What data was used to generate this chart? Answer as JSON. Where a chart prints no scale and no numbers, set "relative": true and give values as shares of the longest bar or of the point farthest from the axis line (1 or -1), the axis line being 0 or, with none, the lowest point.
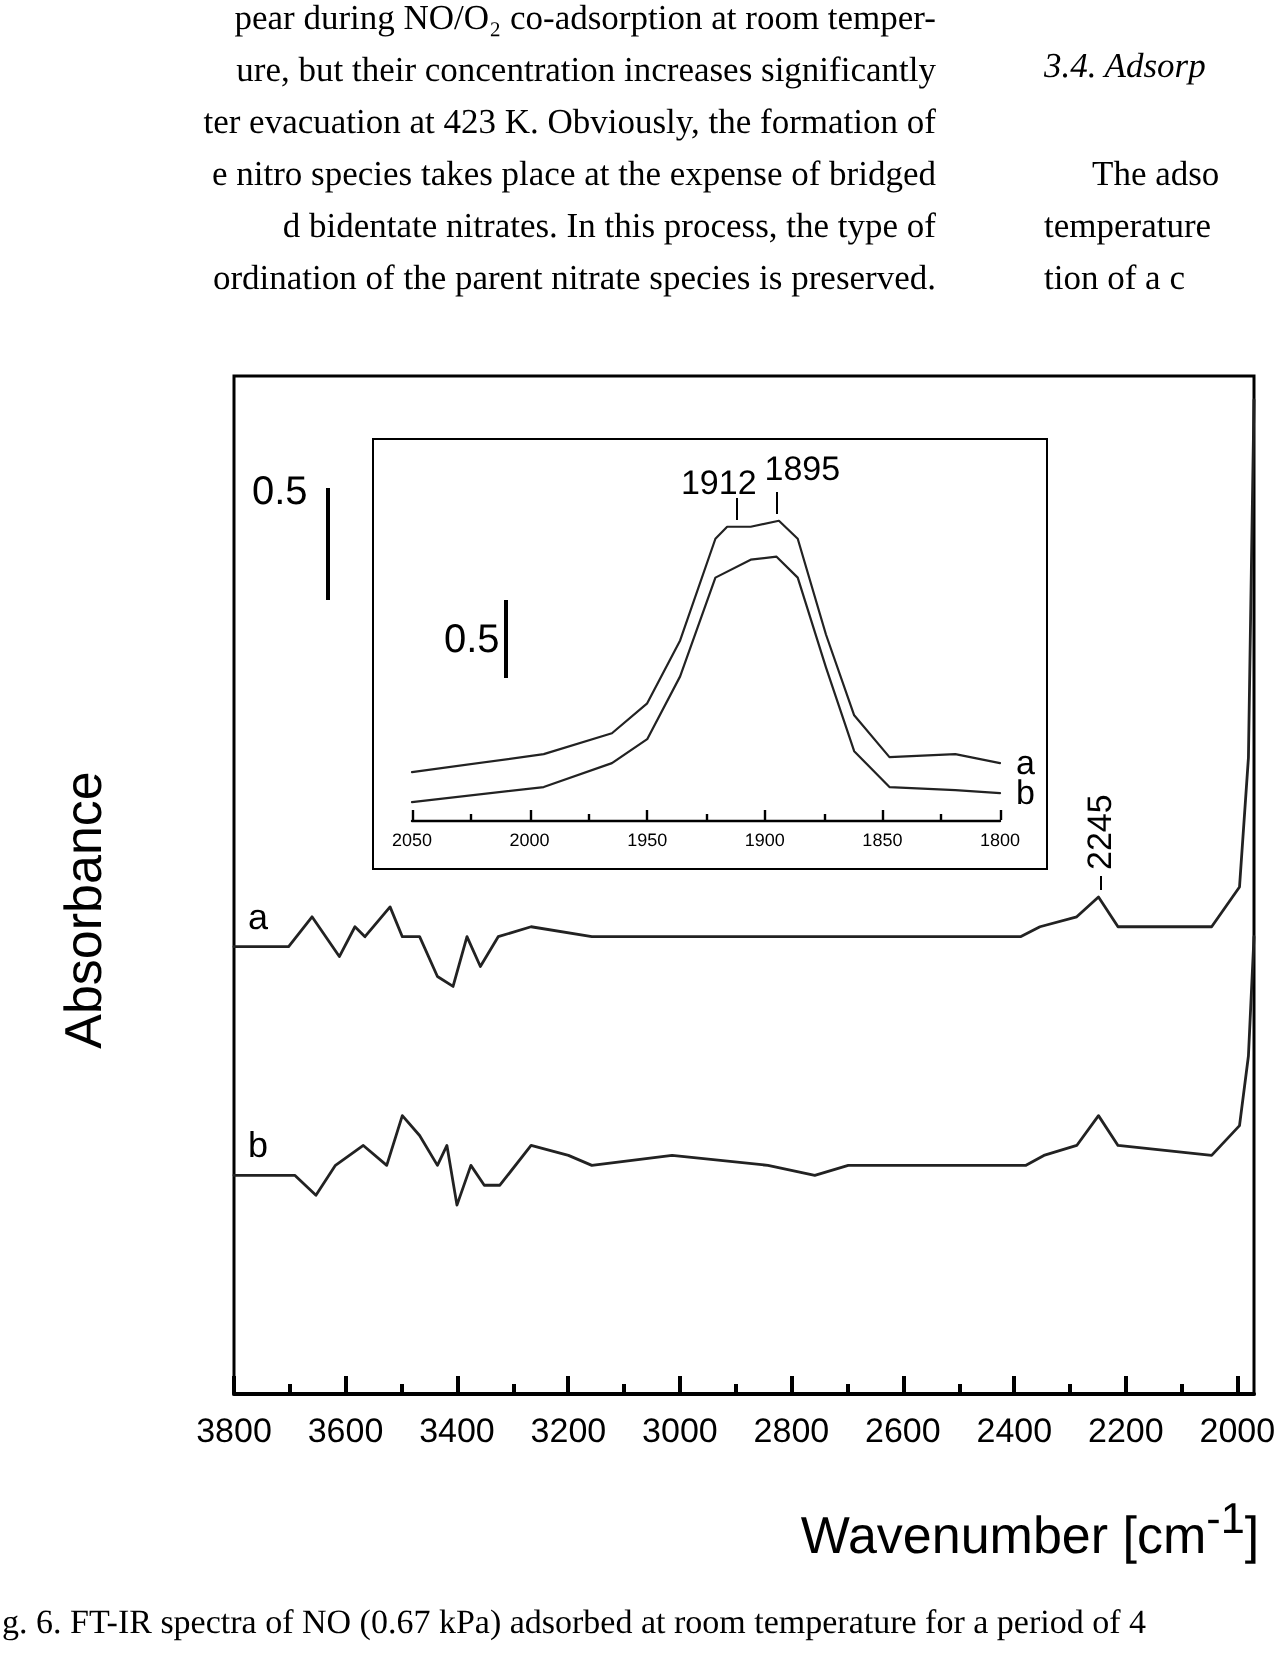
{
  "chart_data": [
    {
      "type": "line",
      "relative": true,
      "xlabel": "Wavenumber [cm$^{-1}$]",
      "ylabel": "Absorbance",
      "xlim": [
        3800,
        1970
      ],
      "xticks": [
        3800,
        3600,
        3400,
        3200,
        3000,
        2800,
        2600,
        2400,
        2200,
        2000
      ],
      "marker": "none",
      "line_style": "solid",
      "annotations": [
        "pear during NO/O₂ co-adsorption at room temper-",
        "ure, but their concentration increases significantly",
        "ter evacuation at 423 K. Obviously, the formation of",
        "e nitro species takes place at the expense of bridged",
        "d bidentate nitrates. In this process, the type of",
        "ordination of the parent nitrate species is preserved.",
        "3.4. Adsorp",
        "The adso",
        "temperature",
        "tion of a c",
        "0.5",
        "g. 6. FT-IR spectra of NO (0.67 kPa) adsorbed at room temperature for a period of 4",
        {
          "text": "2245",
          "x": 2245,
          "y": 0.5
        }
      ],
      "series": [
        {
          "name": "a",
          "color": "#222222",
          "x": [
            3800,
            3702,
            3660,
            3611,
            3583,
            3565,
            3520,
            3498,
            3467,
            3435,
            3407,
            3382,
            3358,
            3326,
            3267,
            3158,
            2772,
            2709,
            2389,
            2354,
            2288,
            2249,
            2214,
            2046,
            1996,
            1980,
            1970
          ],
          "values": [
            0.45,
            0.45,
            0.48,
            0.44,
            0.47,
            0.46,
            0.49,
            0.46,
            0.46,
            0.42,
            0.41,
            0.46,
            0.43,
            0.46,
            0.47,
            0.46,
            0.46,
            0.46,
            0.46,
            0.47,
            0.48,
            0.5,
            0.47,
            0.47,
            0.51,
            0.64,
            1
          ]
        },
        {
          "name": "b",
          "color": "#222222",
          "x": [
            3800,
            3751,
            3691,
            3653,
            3618,
            3568,
            3526,
            3498,
            3467,
            3435,
            3418,
            3400,
            3375,
            3351,
            3323,
            3267,
            3200,
            3158,
            3014,
            2842,
            2758,
            2698,
            2407,
            2379,
            2347,
            2288,
            2249,
            2214,
            2046,
            1996,
            1980,
            1970
          ],
          "values": [
            0.22,
            0.22,
            0.22,
            0.2,
            0.23,
            0.25,
            0.23,
            0.28,
            0.26,
            0.23,
            0.25,
            0.19,
            0.23,
            0.21,
            0.21,
            0.25,
            0.24,
            0.23,
            0.24,
            0.23,
            0.22,
            0.23,
            0.23,
            0.23,
            0.24,
            0.25,
            0.28,
            0.25,
            0.24,
            0.27,
            0.34,
            0.46
          ]
        }
      ]
    },
    {
      "type": "line",
      "relative": true,
      "xlim": [
        2050,
        1800
      ],
      "xticks": [
        2050,
        2000,
        1950,
        1900,
        1850,
        1800
      ],
      "marker": "none",
      "line_style": "solid",
      "annotations": [
        "0.5",
        {
          "text": "1912",
          "x": 1912,
          "y": 0.98
        },
        {
          "text": "1895",
          "x": 1895,
          "y": 1
        }
      ],
      "series": [
        {
          "name": "a",
          "color": "#222222",
          "x": [
            2050,
            1994,
            1965,
            1950,
            1936,
            1921,
            1916,
            1906,
            1894,
            1886,
            1874,
            1862,
            1847,
            1819,
            1800
          ],
          "values": [
            0.16,
            0.22,
            0.29,
            0.39,
            0.6,
            0.94,
            0.98,
            0.98,
            1,
            0.94,
            0.62,
            0.35,
            0.21,
            0.22,
            0.19
          ]
        },
        {
          "name": "b",
          "color": "#222222",
          "x": [
            2050,
            1994,
            1965,
            1950,
            1936,
            1921,
            1906,
            1895,
            1886,
            1874,
            1862,
            1847,
            1819,
            1800
          ],
          "values": [
            0.06,
            0.11,
            0.19,
            0.27,
            0.48,
            0.81,
            0.87,
            0.88,
            0.81,
            0.51,
            0.23,
            0.11,
            0.1,
            0.09
          ]
        }
      ]
    }
  ]
}
